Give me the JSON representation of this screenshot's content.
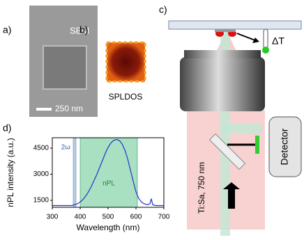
{
  "panels": {
    "a": {
      "label": "a)",
      "tag": "SEM",
      "scale_bar": "250 nm"
    },
    "b": {
      "label": "b)",
      "caption": "SPLDOS"
    },
    "c": {
      "label": "c)",
      "delta": "ΔT",
      "laser": "Ti:Sa, 750 nm",
      "detector": "Detector"
    },
    "d": {
      "label": "d)"
    }
  },
  "chart_data": {
    "type": "line",
    "xlabel": "Wavelength (nm)",
    "ylabel": "nPL intensity (a.u.)",
    "xlim": [
      300,
      700
    ],
    "ylim": [
      1100,
      5100
    ],
    "xticks": [
      300,
      400,
      500,
      600,
      700
    ],
    "yticks": [
      1500,
      3000,
      4500
    ],
    "spans": [
      {
        "label": "2ω",
        "x0": 375,
        "x1": 385,
        "color": "#b8cce4"
      },
      {
        "label": "nPL",
        "x0": 400,
        "x1": 605,
        "color": "#a9e0c2"
      }
    ],
    "color": "#2233cc",
    "x": [
      300,
      310,
      320,
      330,
      340,
      350,
      360,
      370,
      380,
      390,
      400,
      410,
      420,
      430,
      440,
      450,
      460,
      470,
      480,
      490,
      500,
      510,
      520,
      530,
      540,
      550,
      560,
      570,
      580,
      590,
      600,
      610,
      620,
      630,
      640,
      650,
      655,
      660,
      670,
      680,
      690,
      700
    ],
    "values": [
      1200,
      1200,
      1200,
      1200,
      1200,
      1200,
      1200,
      1200,
      1250,
      1300,
      1400,
      1550,
      1750,
      2000,
      2300,
      2650,
      3000,
      3400,
      3800,
      4200,
      4550,
      4800,
      4950,
      5000,
      4950,
      4750,
      4400,
      3900,
      3250,
      2600,
      2000,
      1600,
      1400,
      1300,
      1250,
      1300,
      1600,
      1250,
      1200,
      1200,
      1200,
      1200
    ]
  }
}
